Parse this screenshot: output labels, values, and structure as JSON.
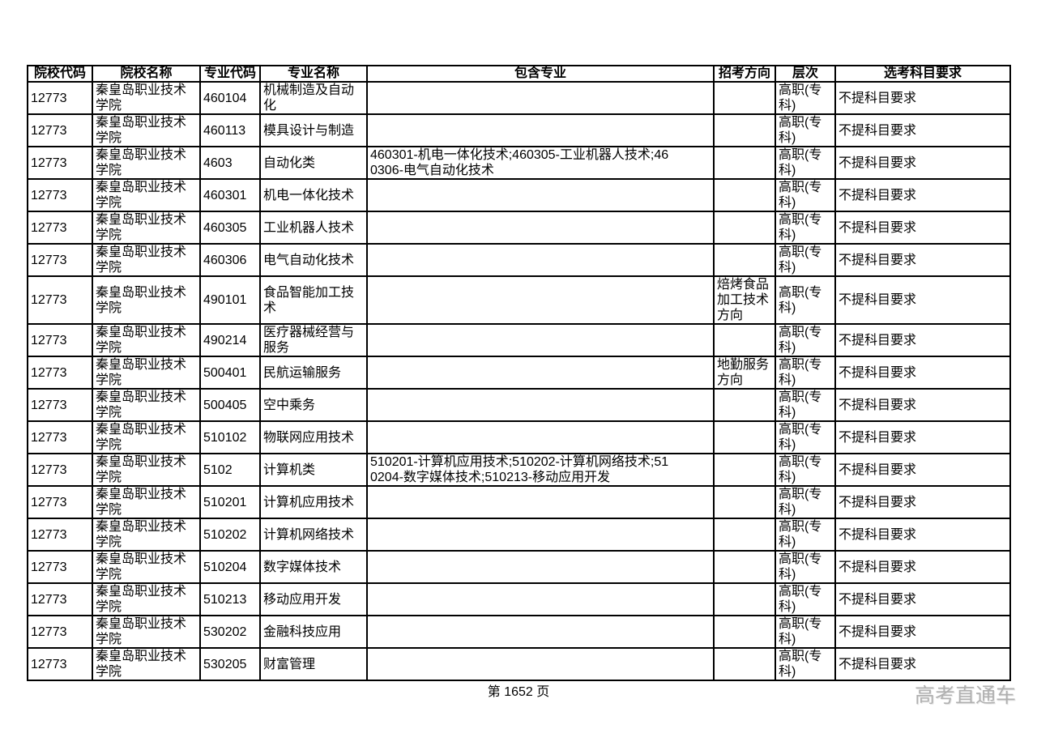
{
  "page": {
    "footer_page_label": "第 1652 页",
    "watermark": "高考直通车"
  },
  "colors": {
    "border": "#000000",
    "text": "#000000",
    "background": "#ffffff",
    "watermark": "#b0b0b0"
  },
  "table": {
    "columns": [
      {
        "key": "college_code",
        "label": "院校代码"
      },
      {
        "key": "college_name",
        "label": "院校名称"
      },
      {
        "key": "major_code",
        "label": "专业代码"
      },
      {
        "key": "major_name",
        "label": "专业名称"
      },
      {
        "key": "included_majors",
        "label": "包含专业"
      },
      {
        "key": "exam_direction",
        "label": "招考方向"
      },
      {
        "key": "level",
        "label": "层次"
      },
      {
        "key": "subject_requirements",
        "label": "选考科目要求"
      }
    ],
    "rows": [
      {
        "college_code": "12773",
        "college_name": "秦皇岛职业技术学院",
        "major_code": "460104",
        "major_name": "机械制造及自动化",
        "included_majors": "",
        "exam_direction": "",
        "level": "高职(专科)",
        "subject_requirements": "不提科目要求"
      },
      {
        "college_code": "12773",
        "college_name": "秦皇岛职业技术学院",
        "major_code": "460113",
        "major_name": "模具设计与制造",
        "included_majors": "",
        "exam_direction": "",
        "level": "高职(专科)",
        "subject_requirements": "不提科目要求"
      },
      {
        "college_code": "12773",
        "college_name": "秦皇岛职业技术学院",
        "major_code": "4603",
        "major_name": "自动化类",
        "included_majors": "460301-机电一体化技术;460305-工业机器人技术;460306-电气自动化技术",
        "exam_direction": "",
        "level": "高职(专科)",
        "subject_requirements": "不提科目要求"
      },
      {
        "college_code": "12773",
        "college_name": "秦皇岛职业技术学院",
        "major_code": "460301",
        "major_name": "机电一体化技术",
        "included_majors": "",
        "exam_direction": "",
        "level": "高职(专科)",
        "subject_requirements": "不提科目要求"
      },
      {
        "college_code": "12773",
        "college_name": "秦皇岛职业技术学院",
        "major_code": "460305",
        "major_name": "工业机器人技术",
        "included_majors": "",
        "exam_direction": "",
        "level": "高职(专科)",
        "subject_requirements": "不提科目要求"
      },
      {
        "college_code": "12773",
        "college_name": "秦皇岛职业技术学院",
        "major_code": "460306",
        "major_name": "电气自动化技术",
        "included_majors": "",
        "exam_direction": "",
        "level": "高职(专科)",
        "subject_requirements": "不提科目要求"
      },
      {
        "college_code": "12773",
        "college_name": "秦皇岛职业技术学院",
        "major_code": "490101",
        "major_name": "食品智能加工技术",
        "included_majors": "",
        "exam_direction": "焙烤食品加工技术方向",
        "level": "高职(专科)",
        "subject_requirements": "不提科目要求"
      },
      {
        "college_code": "12773",
        "college_name": "秦皇岛职业技术学院",
        "major_code": "490214",
        "major_name": "医疗器械经营与服务",
        "included_majors": "",
        "exam_direction": "",
        "level": "高职(专科)",
        "subject_requirements": "不提科目要求"
      },
      {
        "college_code": "12773",
        "college_name": "秦皇岛职业技术学院",
        "major_code": "500401",
        "major_name": "民航运输服务",
        "included_majors": "",
        "exam_direction": "地勤服务方向",
        "level": "高职(专科)",
        "subject_requirements": "不提科目要求"
      },
      {
        "college_code": "12773",
        "college_name": "秦皇岛职业技术学院",
        "major_code": "500405",
        "major_name": "空中乘务",
        "included_majors": "",
        "exam_direction": "",
        "level": "高职(专科)",
        "subject_requirements": "不提科目要求"
      },
      {
        "college_code": "12773",
        "college_name": "秦皇岛职业技术学院",
        "major_code": "510102",
        "major_name": "物联网应用技术",
        "included_majors": "",
        "exam_direction": "",
        "level": "高职(专科)",
        "subject_requirements": "不提科目要求"
      },
      {
        "college_code": "12773",
        "college_name": "秦皇岛职业技术学院",
        "major_code": "5102",
        "major_name": "计算机类",
        "included_majors": "510201-计算机应用技术;510202-计算机网络技术;510204-数字媒体技术;510213-移动应用开发",
        "exam_direction": "",
        "level": "高职(专科)",
        "subject_requirements": "不提科目要求"
      },
      {
        "college_code": "12773",
        "college_name": "秦皇岛职业技术学院",
        "major_code": "510201",
        "major_name": "计算机应用技术",
        "included_majors": "",
        "exam_direction": "",
        "level": "高职(专科)",
        "subject_requirements": "不提科目要求"
      },
      {
        "college_code": "12773",
        "college_name": "秦皇岛职业技术学院",
        "major_code": "510202",
        "major_name": "计算机网络技术",
        "included_majors": "",
        "exam_direction": "",
        "level": "高职(专科)",
        "subject_requirements": "不提科目要求"
      },
      {
        "college_code": "12773",
        "college_name": "秦皇岛职业技术学院",
        "major_code": "510204",
        "major_name": "数字媒体技术",
        "included_majors": "",
        "exam_direction": "",
        "level": "高职(专科)",
        "subject_requirements": "不提科目要求"
      },
      {
        "college_code": "12773",
        "college_name": "秦皇岛职业技术学院",
        "major_code": "510213",
        "major_name": "移动应用开发",
        "included_majors": "",
        "exam_direction": "",
        "level": "高职(专科)",
        "subject_requirements": "不提科目要求"
      },
      {
        "college_code": "12773",
        "college_name": "秦皇岛职业技术学院",
        "major_code": "530202",
        "major_name": "金融科技应用",
        "included_majors": "",
        "exam_direction": "",
        "level": "高职(专科)",
        "subject_requirements": "不提科目要求"
      },
      {
        "college_code": "12773",
        "college_name": "秦皇岛职业技术学院",
        "major_code": "530205",
        "major_name": "财富管理",
        "included_majors": "",
        "exam_direction": "",
        "level": "高职(专科)",
        "subject_requirements": "不提科目要求"
      }
    ]
  }
}
